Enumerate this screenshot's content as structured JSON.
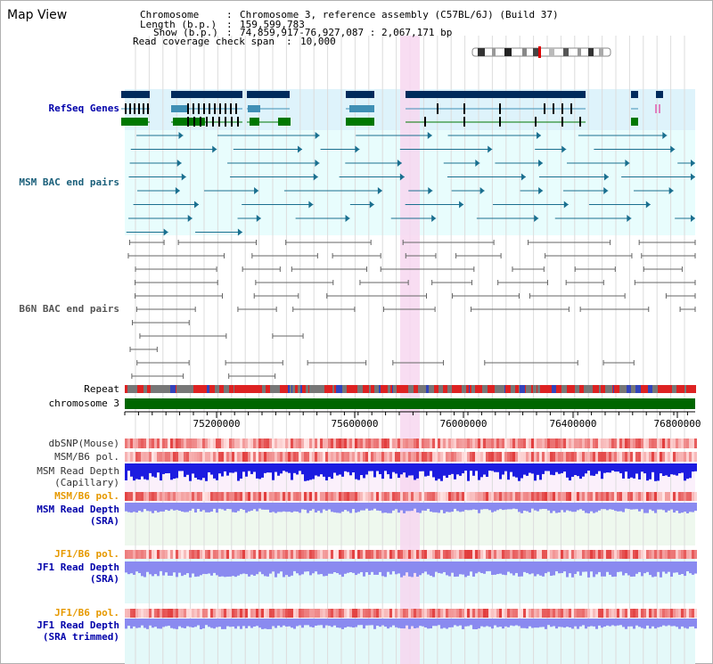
{
  "title": "Map View",
  "info": {
    "chromosome_label": "Chromosome",
    "chromosome_value": "Chromosome 3, reference assembly (C57BL/6J) (Build 37)",
    "length_label": "Length (b.p.)",
    "length_value": "159,599,783",
    "show_label": "Show (b.p.)",
    "show_value": "74,859,917-76,927,087 : 2,067,171 bp",
    "coverage_label": "Read coverage check span",
    "coverage_value": "10,000"
  },
  "tracks": {
    "refseq": "RefSeq Genes",
    "msm_bac": "MSM BAC end pairs",
    "b6n_bac": "B6N BAC end pairs",
    "repeat": "Repeat",
    "chromosome": "chromosome 3",
    "dbsnp": "dbSNP(Mouse)",
    "msm_pol1": "MSM/B6 pol.",
    "msm_cap_1": "MSM Read Depth",
    "msm_cap_2": "(Capillary)",
    "msm_pol2": "MSM/B6 pol.",
    "msm_sra_1": "MSM Read Depth",
    "msm_sra_2": "(SRA)",
    "jf1_pol1": "JF1/B6 pol.",
    "jf1_sra_1": "JF1 Read Depth",
    "jf1_sra_2": "(SRA)",
    "jf1_pol2": "JF1/B6 pol.",
    "jf1_tr_1": "JF1 Read Depth",
    "jf1_tr_2": "(SRA trimmed)"
  },
  "axis": {
    "ticks": [
      "75200000",
      "75600000",
      "76000000",
      "76400000",
      "76800000"
    ]
  },
  "colors": {
    "gene_dark": "#002b5c",
    "gene_mid": "#3f8fb5",
    "gene_green": "#007700",
    "msm_bac": "#1a6f8f",
    "b6n_bac": "#666666",
    "chromosome_bar": "#006600",
    "highlight": "#f7d7f0",
    "depth_blue": "#1c1ce0",
    "depth_light": "#8a8af0"
  }
}
